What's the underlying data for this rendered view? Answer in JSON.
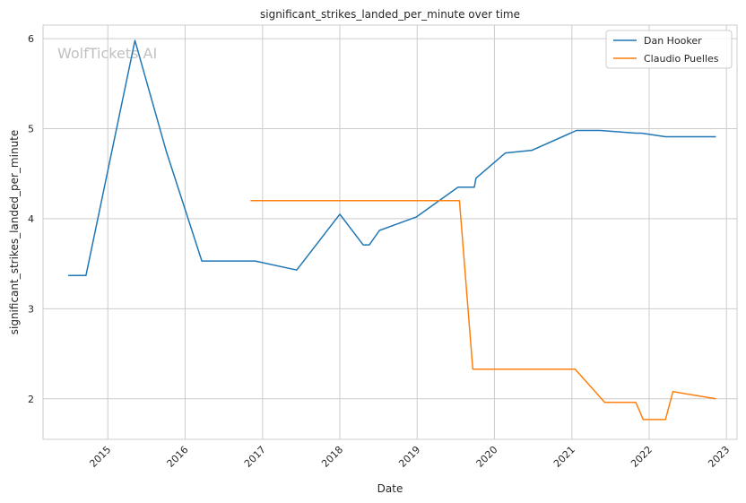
{
  "chart_data": {
    "type": "line",
    "title": "significant_strikes_landed_per_minute over time",
    "xlabel": "Date",
    "ylabel": "significant_strikes_landed_per_minute",
    "watermark": "WolfTickets AI",
    "xlim": [
      "2014-03-01",
      "2023-02-20"
    ],
    "ylim": [
      1.55,
      6.15
    ],
    "x_ticks": [
      "2015",
      "2016",
      "2017",
      "2018",
      "2019",
      "2020",
      "2021",
      "2022",
      "2023"
    ],
    "y_ticks": [
      2,
      3,
      4,
      5,
      6
    ],
    "grid": true,
    "legend_position": "top-right",
    "colors": {
      "Dan Hooker": "#1f77b4",
      "Claudio Puelles": "#ff7f0e",
      "grid": "#cccccc",
      "axes": "#cccccc"
    },
    "series": [
      {
        "name": "Dan Hooker",
        "color": "#1f77b4",
        "points": [
          {
            "x": "2014-06-28",
            "y": 3.37
          },
          {
            "x": "2014-09-20",
            "y": 3.37
          },
          {
            "x": "2015-05-09",
            "y": 5.98
          },
          {
            "x": "2015-10-04",
            "y": 4.75
          },
          {
            "x": "2016-03-20",
            "y": 3.53
          },
          {
            "x": "2016-11-27",
            "y": 3.53
          },
          {
            "x": "2017-06-11",
            "y": 3.43
          },
          {
            "x": "2018-01-01",
            "y": 4.05
          },
          {
            "x": "2018-04-21",
            "y": 3.71
          },
          {
            "x": "2018-05-20",
            "y": 3.71
          },
          {
            "x": "2018-07-07",
            "y": 3.87
          },
          {
            "x": "2018-12-29",
            "y": 4.02
          },
          {
            "x": "2019-07-13",
            "y": 4.35
          },
          {
            "x": "2019-09-28",
            "y": 4.35
          },
          {
            "x": "2019-10-06",
            "y": 4.45
          },
          {
            "x": "2020-02-22",
            "y": 4.73
          },
          {
            "x": "2020-06-27",
            "y": 4.76
          },
          {
            "x": "2021-01-23",
            "y": 4.98
          },
          {
            "x": "2021-05-15",
            "y": 4.98
          },
          {
            "x": "2021-10-30",
            "y": 4.95
          },
          {
            "x": "2021-11-25",
            "y": 4.95
          },
          {
            "x": "2022-03-19",
            "y": 4.91
          },
          {
            "x": "2022-11-12",
            "y": 4.91
          }
        ]
      },
      {
        "name": "Claudio Puelles",
        "color": "#ff7f0e",
        "points": [
          {
            "x": "2016-11-05",
            "y": 4.2
          },
          {
            "x": "2019-07-20",
            "y": 4.2
          },
          {
            "x": "2019-09-21",
            "y": 2.33
          },
          {
            "x": "2021-01-16",
            "y": 2.33
          },
          {
            "x": "2021-06-05",
            "y": 1.96
          },
          {
            "x": "2021-10-30",
            "y": 1.96
          },
          {
            "x": "2021-12-04",
            "y": 1.77
          },
          {
            "x": "2022-03-19",
            "y": 1.77
          },
          {
            "x": "2022-04-23",
            "y": 2.08
          },
          {
            "x": "2022-11-12",
            "y": 2.0
          }
        ]
      }
    ]
  }
}
